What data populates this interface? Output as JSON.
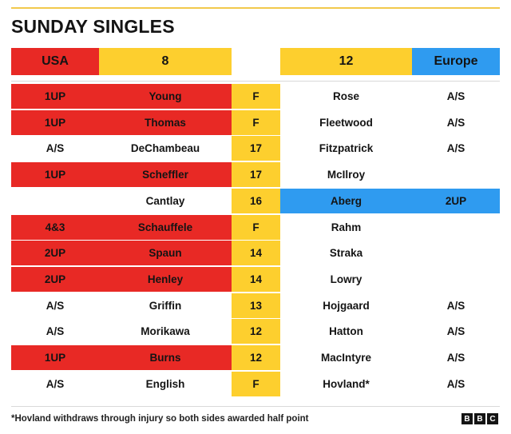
{
  "title": "SUNDAY SINGLES",
  "header": {
    "usa_label": "USA",
    "usa_score": "8",
    "europe_score": "12",
    "europe_label": "Europe"
  },
  "colors": {
    "usa": "#e82925",
    "europe": "#2f9bf0",
    "score": "#fdcf2e"
  },
  "matches": [
    {
      "usa_result": "1UP",
      "usa_player": "Young",
      "hole": "F",
      "eur_player": "Rose",
      "eur_result": "A/S",
      "winner": "usa"
    },
    {
      "usa_result": "1UP",
      "usa_player": "Thomas",
      "hole": "F",
      "eur_player": "Fleetwood",
      "eur_result": "A/S",
      "winner": "usa"
    },
    {
      "usa_result": "A/S",
      "usa_player": "DeChambeau",
      "hole": "17",
      "eur_player": "Fitzpatrick",
      "eur_result": "A/S",
      "winner": "none"
    },
    {
      "usa_result": "1UP",
      "usa_player": "Scheffler",
      "hole": "17",
      "eur_player": "McIlroy",
      "eur_result": "",
      "winner": "usa"
    },
    {
      "usa_result": "",
      "usa_player": "Cantlay",
      "hole": "16",
      "eur_player": "Aberg",
      "eur_result": "2UP",
      "winner": "eur"
    },
    {
      "usa_result": "4&3",
      "usa_player": "Schauffele",
      "hole": "F",
      "eur_player": "Rahm",
      "eur_result": "",
      "winner": "usa"
    },
    {
      "usa_result": "2UP",
      "usa_player": "Spaun",
      "hole": "14",
      "eur_player": "Straka",
      "eur_result": "",
      "winner": "usa"
    },
    {
      "usa_result": "2UP",
      "usa_player": "Henley",
      "hole": "14",
      "eur_player": "Lowry",
      "eur_result": "",
      "winner": "usa"
    },
    {
      "usa_result": "A/S",
      "usa_player": "Griffin",
      "hole": "13",
      "eur_player": "Hojgaard",
      "eur_result": "A/S",
      "winner": "none"
    },
    {
      "usa_result": "A/S",
      "usa_player": "Morikawa",
      "hole": "12",
      "eur_player": "Hatton",
      "eur_result": "A/S",
      "winner": "none"
    },
    {
      "usa_result": "1UP",
      "usa_player": "Burns",
      "hole": "12",
      "eur_player": "MacIntyre",
      "eur_result": "A/S",
      "winner": "usa"
    },
    {
      "usa_result": "A/S",
      "usa_player": "English",
      "hole": "F",
      "eur_player": "Hovland*",
      "eur_result": "A/S",
      "winner": "none"
    }
  ],
  "footnote": "*Hovland withdraws through injury so both sides awarded half point",
  "logo": [
    "B",
    "B",
    "C"
  ]
}
